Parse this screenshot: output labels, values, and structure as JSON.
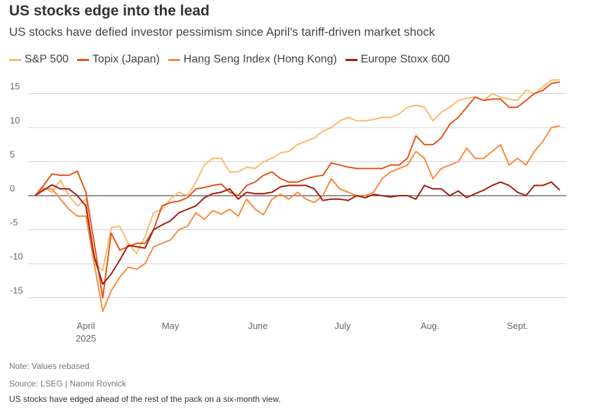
{
  "header": {
    "title": "US stocks edge into the lead",
    "subtitle": "US stocks have defied investor pessimism since April's tariff-driven market shock"
  },
  "footer": {
    "note": "Note: Values rebased",
    "source": "Source: LSEG | Naomi Rovnick",
    "description": "US stocks have edged ahead of the rest of the pack on a six-month view."
  },
  "chart_data": {
    "type": "line",
    "title": "US stocks edge into the lead",
    "xlabel": "",
    "ylabel": "",
    "ylim": [
      -17.5,
      17.5
    ],
    "yticks": [
      15,
      10,
      5,
      0,
      -5,
      -10,
      -15
    ],
    "xticks": [
      {
        "date": "2025-04-01",
        "label": "April",
        "sublabel": "2025"
      },
      {
        "date": "2025-05-01",
        "label": "May"
      },
      {
        "date": "2025-06-01",
        "label": "June"
      },
      {
        "date": "2025-07-01",
        "label": "July"
      },
      {
        "date": "2025-08-01",
        "label": "Aug."
      },
      {
        "date": "2025-09-01",
        "label": "Sept."
      }
    ],
    "grid": true,
    "legend": "top-left",
    "x": [
      "2025-03-14",
      "2025-03-17",
      "2025-03-20",
      "2025-03-23",
      "2025-03-26",
      "2025-03-29",
      "2025-04-01",
      "2025-04-04",
      "2025-04-07",
      "2025-04-10",
      "2025-04-13",
      "2025-04-16",
      "2025-04-19",
      "2025-04-22",
      "2025-04-25",
      "2025-04-28",
      "2025-05-01",
      "2025-05-04",
      "2025-05-07",
      "2025-05-10",
      "2025-05-13",
      "2025-05-16",
      "2025-05-19",
      "2025-05-22",
      "2025-05-25",
      "2025-05-28",
      "2025-05-31",
      "2025-06-03",
      "2025-06-06",
      "2025-06-09",
      "2025-06-12",
      "2025-06-15",
      "2025-06-18",
      "2025-06-21",
      "2025-06-24",
      "2025-06-27",
      "2025-06-30",
      "2025-07-03",
      "2025-07-06",
      "2025-07-09",
      "2025-07-12",
      "2025-07-15",
      "2025-07-18",
      "2025-07-21",
      "2025-07-24",
      "2025-07-27",
      "2025-07-30",
      "2025-08-02",
      "2025-08-05",
      "2025-08-08",
      "2025-08-11",
      "2025-08-14",
      "2025-08-17",
      "2025-08-20",
      "2025-08-23",
      "2025-08-26",
      "2025-08-29",
      "2025-09-01",
      "2025-09-04",
      "2025-09-07",
      "2025-09-10",
      "2025-09-13",
      "2025-09-16"
    ],
    "series": [
      {
        "name": "S&P 500",
        "color": "#fdb96b",
        "values": [
          0,
          1.2,
          0.5,
          2.3,
          0,
          -1.5,
          -0.5,
          -10,
          -11,
          -4.7,
          -4.5,
          -7,
          -8.5,
          -6,
          -2.5,
          -2,
          -0.5,
          0.5,
          0,
          2,
          4.5,
          5.5,
          5.5,
          3.5,
          3.5,
          4.2,
          4,
          5,
          5.5,
          6.3,
          6.5,
          7.5,
          8,
          8.5,
          9.5,
          10,
          11,
          11.5,
          11,
          11,
          11.2,
          11.5,
          11.5,
          12,
          13,
          13.3,
          13,
          11,
          12.3,
          13,
          14,
          14.3,
          14.5,
          14,
          15,
          14.5,
          14.2,
          14,
          15.5,
          15,
          16,
          17,
          17
        ]
      },
      {
        "name": "Topix (Japan)",
        "color": "#e4531b",
        "values": [
          0,
          1.5,
          3.2,
          3,
          3,
          3.6,
          0.5,
          -7,
          -15,
          -5.5,
          -8,
          -7.5,
          -7,
          -7,
          -5,
          -1.5,
          -1,
          -0.8,
          -0.3,
          1,
          1.2,
          1.5,
          1.7,
          0.5,
          0,
          1.5,
          2,
          3,
          3.5,
          2.5,
          2,
          2,
          2.5,
          2.8,
          3,
          4.8,
          4.5,
          4.2,
          4,
          4,
          4,
          4,
          4.5,
          4.5,
          5.5,
          8.8,
          7.5,
          7.5,
          8.5,
          10.5,
          11.5,
          13,
          14.5,
          14,
          14.2,
          14.2,
          13,
          13,
          14,
          15,
          15.5,
          16.5,
          16.7
        ]
      },
      {
        "name": "Hang Seng Index (Hong Kong)",
        "color": "#fb8a3c",
        "values": [
          0,
          1,
          1,
          -0.5,
          -2,
          -3,
          -3,
          -10,
          -17,
          -14,
          -12,
          -10.5,
          -10.8,
          -10,
          -7.5,
          -7,
          -6.5,
          -5,
          -4.5,
          -2.5,
          -3.5,
          -2.2,
          -2.7,
          -2,
          -3,
          -0.5,
          -2,
          -2.8,
          -0.5,
          0.2,
          -0.5,
          0.5,
          -0.5,
          -1,
          0,
          2.5,
          1,
          0.5,
          0,
          0,
          0.5,
          2.5,
          3.5,
          4,
          4.5,
          6.5,
          5.5,
          2.5,
          4,
          4.5,
          5,
          7,
          5.5,
          5.5,
          6.5,
          7.5,
          4.5,
          5.5,
          4.5,
          6.5,
          8,
          10,
          10.3
        ]
      },
      {
        "name": "Europe Stoxx 600",
        "color": "#a31c0f",
        "values": [
          0,
          0.8,
          1.6,
          1,
          1,
          0,
          -1.5,
          -9,
          -13,
          -11.5,
          -9.5,
          -7.3,
          -7.5,
          -7.7,
          -5,
          -4.3,
          -3.7,
          -2.5,
          -2,
          -1.5,
          -0.3,
          0.3,
          0.5,
          1,
          -0.5,
          0.5,
          0.3,
          0.3,
          0.5,
          1.3,
          1.5,
          1.5,
          1.5,
          1,
          -0.7,
          -0.5,
          -0.5,
          -0.7,
          0,
          -0.3,
          0.2,
          0,
          -0.2,
          0,
          0,
          -0.5,
          1.5,
          1,
          1,
          0,
          0.7,
          -0.3,
          0.3,
          0.8,
          1.5,
          2,
          1.5,
          0.5,
          0,
          1.5,
          1.5,
          2,
          0.8
        ]
      }
    ]
  }
}
